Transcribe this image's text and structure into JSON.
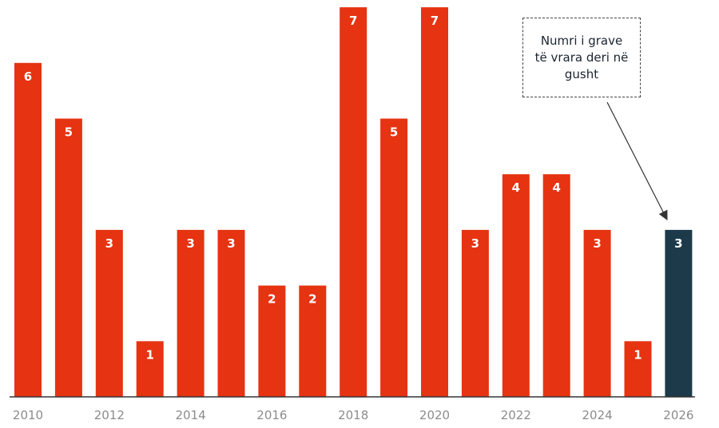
{
  "chart_data": {
    "type": "bar",
    "categories": [
      "2010",
      "2011",
      "2012",
      "2013",
      "2014",
      "2015",
      "2016",
      "2017",
      "2018",
      "2019",
      "2020",
      "2021",
      "2022",
      "2023",
      "2024",
      "2025",
      "2026"
    ],
    "values": [
      6,
      5,
      3,
      1,
      3,
      3,
      2,
      2,
      7,
      5,
      7,
      3,
      4,
      4,
      3,
      1,
      3
    ],
    "tick_labels": [
      "2010",
      "2012",
      "2014",
      "2016",
      "2018",
      "2020",
      "2022",
      "2024",
      "2026"
    ],
    "highlight_category": "2026",
    "annotation": {
      "lines": [
        "Numri i grave",
        "të vrara deri në",
        "gusht"
      ],
      "target_category": "2026"
    },
    "ylim": [
      0,
      7
    ],
    "grid": false,
    "colors": {
      "bar": "#e63312",
      "highlight": "#1c3a4a",
      "axis": "#333333",
      "tick_text": "#8c8c8c"
    }
  }
}
